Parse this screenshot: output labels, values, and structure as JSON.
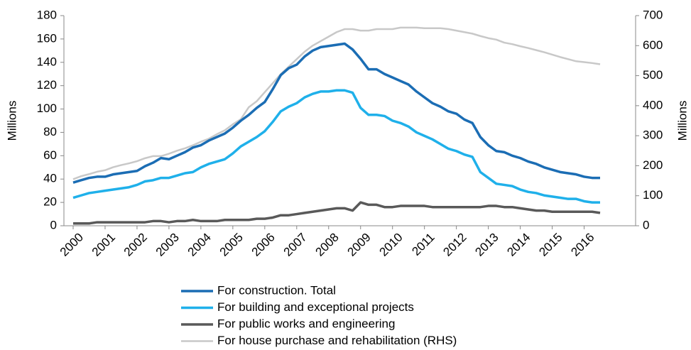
{
  "chart_data": {
    "type": "line",
    "y_label": "Millions",
    "y2_label": "Millions",
    "categories": [
      "2000",
      null,
      null,
      null,
      "2001",
      null,
      null,
      null,
      "2002",
      null,
      null,
      null,
      "2003",
      null,
      null,
      null,
      "2004",
      null,
      null,
      null,
      "2005",
      null,
      null,
      null,
      "2006",
      null,
      null,
      null,
      "2007",
      null,
      null,
      null,
      "2008",
      null,
      null,
      null,
      "2009",
      null,
      null,
      null,
      "2010",
      null,
      null,
      null,
      "2011",
      null,
      null,
      null,
      "2012",
      null,
      null,
      null,
      "2013",
      null,
      null,
      null,
      "2014",
      null,
      null,
      null,
      "2015",
      null,
      null,
      null,
      "2016",
      null,
      null
    ],
    "ylim": [
      0,
      180
    ],
    "yticks": [
      0,
      20,
      40,
      60,
      80,
      100,
      120,
      140,
      160,
      180
    ],
    "y2lim": [
      0,
      700
    ],
    "y2ticks": [
      0,
      100,
      200,
      300,
      400,
      500,
      600,
      700
    ],
    "series": [
      {
        "name": "For construction. Total",
        "color": "#1b6db4",
        "values": [
          37,
          39,
          41,
          42,
          42,
          44,
          45,
          46,
          47,
          51,
          54,
          58,
          57,
          60,
          63,
          67,
          69,
          73,
          76,
          79,
          84,
          90,
          95,
          101,
          106,
          117,
          129,
          135,
          138,
          145,
          150,
          153,
          154,
          155,
          156,
          151,
          143,
          134,
          134,
          130,
          127,
          124,
          121,
          115,
          110,
          105,
          102,
          98,
          96,
          91,
          88,
          76,
          69,
          64,
          63,
          60,
          58,
          55,
          53,
          50,
          48,
          46,
          45,
          44,
          42,
          41,
          41
        ]
      },
      {
        "name": "For building and exceptional projects",
        "color": "#1fb0ea",
        "values": [
          24,
          26,
          28,
          29,
          30,
          31,
          32,
          33,
          35,
          38,
          39,
          41,
          41,
          43,
          45,
          46,
          50,
          53,
          55,
          57,
          62,
          68,
          72,
          76,
          81,
          89,
          98,
          102,
          105,
          110,
          113,
          115,
          115,
          116,
          116,
          114,
          101,
          95,
          95,
          94,
          90,
          88,
          85,
          80,
          77,
          74,
          70,
          66,
          64,
          61,
          59,
          46,
          41,
          36,
          35,
          34,
          31,
          29,
          28,
          26,
          25,
          24,
          23,
          23,
          21,
          20,
          20
        ]
      },
      {
        "name": "For public works and engineering",
        "color": "#595959",
        "values": [
          2,
          2,
          2,
          3,
          3,
          3,
          3,
          3,
          3,
          3,
          4,
          4,
          3,
          4,
          4,
          5,
          4,
          4,
          4,
          5,
          5,
          5,
          5,
          6,
          6,
          7,
          9,
          9,
          10,
          11,
          12,
          13,
          14,
          15,
          15,
          13,
          20,
          18,
          18,
          16,
          16,
          17,
          17,
          17,
          17,
          16,
          16,
          16,
          16,
          16,
          16,
          16,
          17,
          17,
          16,
          16,
          15,
          14,
          13,
          13,
          12,
          12,
          12,
          12,
          12,
          12,
          11
        ]
      },
      {
        "name": "For house purchase and rehabilitation (RHS)",
        "color": "#c8c8c8",
        "axis": "y2",
        "values": [
          155,
          165,
          172,
          180,
          185,
          195,
          202,
          208,
          215,
          225,
          232,
          232,
          240,
          250,
          258,
          268,
          280,
          290,
          305,
          318,
          338,
          355,
          395,
          415,
          445,
          475,
          505,
          530,
          555,
          580,
          600,
          615,
          630,
          645,
          655,
          655,
          650,
          650,
          655,
          655,
          655,
          660,
          660,
          660,
          658,
          658,
          658,
          655,
          650,
          645,
          640,
          632,
          625,
          620,
          610,
          605,
          598,
          592,
          585,
          578,
          570,
          562,
          555,
          548,
          545,
          542,
          538
        ]
      }
    ]
  }
}
